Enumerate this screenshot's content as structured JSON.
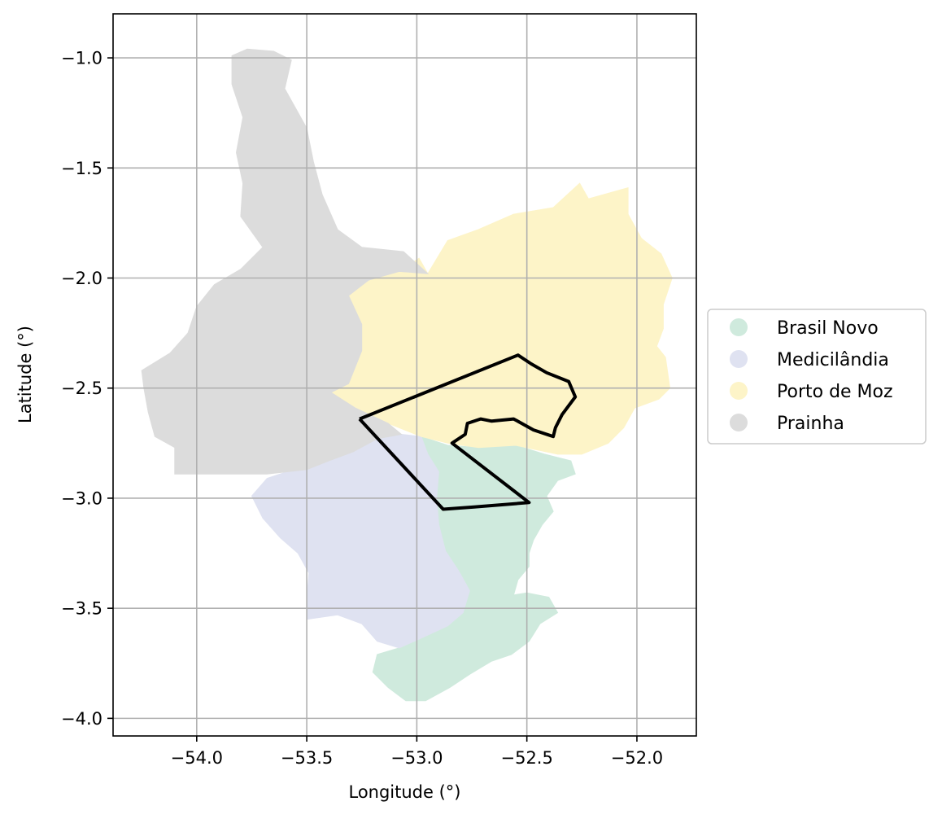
{
  "chart_data": {
    "type": "map",
    "xlabel": "Longitude (°)",
    "ylabel": "Latitude (°)",
    "xlim": [
      -54.38,
      -51.73
    ],
    "ylim": [
      -4.08,
      -0.8
    ],
    "xticks": [
      -54.0,
      -53.5,
      -53.0,
      -52.5,
      -52.0
    ],
    "xtick_labels": [
      "−54.0",
      "−53.5",
      "−53.0",
      "−52.5",
      "−52.0"
    ],
    "yticks": [
      -1.0,
      -1.5,
      -2.0,
      -2.5,
      -3.0,
      -3.5,
      -4.0
    ],
    "ytick_labels": [
      "−1.0",
      "−1.5",
      "−2.0",
      "−2.5",
      "−3.0",
      "−3.5",
      "−4.0"
    ],
    "grid": true,
    "legend_position": "right",
    "regions": [
      {
        "name": "Brasil Novo",
        "color": "#cfeadd",
        "outline": [
          [
            -52.98,
            -2.72
          ],
          [
            -52.86,
            -2.76
          ],
          [
            -52.72,
            -2.77
          ],
          [
            -52.55,
            -2.76
          ],
          [
            -52.42,
            -2.8
          ],
          [
            -52.3,
            -2.83
          ],
          [
            -52.28,
            -2.89
          ],
          [
            -52.36,
            -2.92
          ],
          [
            -52.41,
            -2.99
          ],
          [
            -52.38,
            -3.06
          ],
          [
            -52.43,
            -3.12
          ],
          [
            -52.47,
            -3.19
          ],
          [
            -52.49,
            -3.25
          ],
          [
            -52.49,
            -3.31
          ],
          [
            -52.54,
            -3.37
          ],
          [
            -52.56,
            -3.44
          ],
          [
            -52.5,
            -3.43
          ],
          [
            -52.4,
            -3.45
          ],
          [
            -52.36,
            -3.52
          ],
          [
            -52.44,
            -3.57
          ],
          [
            -52.49,
            -3.65
          ],
          [
            -52.57,
            -3.71
          ],
          [
            -52.66,
            -3.74
          ],
          [
            -52.76,
            -3.8
          ],
          [
            -52.85,
            -3.86
          ],
          [
            -52.96,
            -3.92
          ],
          [
            -53.05,
            -3.92
          ],
          [
            -53.13,
            -3.86
          ],
          [
            -53.2,
            -3.79
          ],
          [
            -53.18,
            -3.71
          ],
          [
            -53.08,
            -3.68
          ],
          [
            -52.99,
            -3.64
          ],
          [
            -52.86,
            -3.58
          ],
          [
            -52.79,
            -3.52
          ],
          [
            -52.76,
            -3.42
          ],
          [
            -52.81,
            -3.33
          ],
          [
            -52.87,
            -3.24
          ],
          [
            -52.9,
            -3.12
          ],
          [
            -52.91,
            -3.0
          ],
          [
            -52.9,
            -2.88
          ],
          [
            -52.95,
            -2.8
          ]
        ]
      },
      {
        "name": "Medicilândia",
        "color": "#dfe2f1",
        "outline": [
          [
            -53.59,
            -2.88
          ],
          [
            -53.5,
            -2.87
          ],
          [
            -53.4,
            -2.83
          ],
          [
            -53.29,
            -2.79
          ],
          [
            -53.18,
            -2.73
          ],
          [
            -53.07,
            -2.71
          ],
          [
            -52.98,
            -2.72
          ],
          [
            -52.95,
            -2.8
          ],
          [
            -52.9,
            -2.88
          ],
          [
            -52.91,
            -3.0
          ],
          [
            -52.9,
            -3.12
          ],
          [
            -52.87,
            -3.24
          ],
          [
            -52.81,
            -3.33
          ],
          [
            -52.76,
            -3.42
          ],
          [
            -52.79,
            -3.52
          ],
          [
            -52.86,
            -3.58
          ],
          [
            -52.99,
            -3.64
          ],
          [
            -53.08,
            -3.68
          ],
          [
            -53.18,
            -3.65
          ],
          [
            -53.25,
            -3.57
          ],
          [
            -53.36,
            -3.53
          ],
          [
            -53.5,
            -3.55
          ],
          [
            -53.5,
            -3.46
          ],
          [
            -53.49,
            -3.34
          ],
          [
            -53.54,
            -3.25
          ],
          [
            -53.62,
            -3.18
          ],
          [
            -53.7,
            -3.09
          ],
          [
            -53.75,
            -2.99
          ],
          [
            -53.68,
            -2.91
          ]
        ]
      },
      {
        "name": "Porto de Moz",
        "color": "#fdf4c8",
        "outline": [
          [
            -52.95,
            -1.98
          ],
          [
            -52.86,
            -1.83
          ],
          [
            -52.72,
            -1.78
          ],
          [
            -52.56,
            -1.71
          ],
          [
            -52.38,
            -1.68
          ],
          [
            -52.26,
            -1.57
          ],
          [
            -52.22,
            -1.64
          ],
          [
            -52.04,
            -1.59
          ],
          [
            -52.04,
            -1.71
          ],
          [
            -51.98,
            -1.82
          ],
          [
            -51.89,
            -1.89
          ],
          [
            -51.84,
            -2.0
          ],
          [
            -51.88,
            -2.12
          ],
          [
            -51.88,
            -2.23
          ],
          [
            -51.91,
            -2.31
          ],
          [
            -51.87,
            -2.36
          ],
          [
            -51.85,
            -2.5
          ],
          [
            -51.9,
            -2.55
          ],
          [
            -52.01,
            -2.59
          ],
          [
            -52.06,
            -2.68
          ],
          [
            -52.13,
            -2.75
          ],
          [
            -52.25,
            -2.8
          ],
          [
            -52.36,
            -2.8
          ],
          [
            -52.55,
            -2.76
          ],
          [
            -52.72,
            -2.77
          ],
          [
            -52.86,
            -2.75
          ],
          [
            -52.98,
            -2.72
          ],
          [
            -53.13,
            -2.66
          ],
          [
            -53.28,
            -2.59
          ],
          [
            -53.39,
            -2.52
          ],
          [
            -53.31,
            -2.48
          ],
          [
            -53.25,
            -2.33
          ],
          [
            -53.25,
            -2.21
          ],
          [
            -53.31,
            -2.08
          ],
          [
            -53.22,
            -2.01
          ],
          [
            -53.08,
            -1.97
          ],
          [
            -52.99,
            -1.91
          ]
        ]
      },
      {
        "name": "Prainha",
        "color": "#dcdcdc",
        "outline": [
          [
            -53.84,
            -0.99
          ],
          [
            -53.77,
            -0.96
          ],
          [
            -53.65,
            -0.97
          ],
          [
            -53.57,
            -1.01
          ],
          [
            -53.6,
            -1.14
          ],
          [
            -53.55,
            -1.23
          ],
          [
            -53.5,
            -1.32
          ],
          [
            -53.47,
            -1.47
          ],
          [
            -53.43,
            -1.62
          ],
          [
            -53.36,
            -1.78
          ],
          [
            -53.25,
            -1.86
          ],
          [
            -53.06,
            -1.88
          ],
          [
            -52.95,
            -1.98
          ],
          [
            -53.08,
            -1.97
          ],
          [
            -53.22,
            -2.01
          ],
          [
            -53.31,
            -2.08
          ],
          [
            -53.25,
            -2.21
          ],
          [
            -53.25,
            -2.33
          ],
          [
            -53.31,
            -2.48
          ],
          [
            -53.39,
            -2.52
          ],
          [
            -53.28,
            -2.59
          ],
          [
            -53.13,
            -2.66
          ],
          [
            -53.07,
            -2.71
          ],
          [
            -53.18,
            -2.73
          ],
          [
            -53.29,
            -2.79
          ],
          [
            -53.4,
            -2.83
          ],
          [
            -53.5,
            -2.87
          ],
          [
            -53.59,
            -2.88
          ],
          [
            -53.68,
            -2.89
          ],
          [
            -53.75,
            -2.89
          ],
          [
            -54.1,
            -2.89
          ],
          [
            -54.1,
            -2.77
          ],
          [
            -54.19,
            -2.72
          ],
          [
            -54.22,
            -2.61
          ],
          [
            -54.24,
            -2.5
          ],
          [
            -54.25,
            -2.42
          ],
          [
            -54.12,
            -2.34
          ],
          [
            -54.04,
            -2.25
          ],
          [
            -54.0,
            -2.13
          ],
          [
            -53.92,
            -2.03
          ],
          [
            -53.8,
            -1.96
          ],
          [
            -53.7,
            -1.86
          ],
          [
            -53.8,
            -1.72
          ],
          [
            -53.79,
            -1.57
          ],
          [
            -53.82,
            -1.43
          ],
          [
            -53.79,
            -1.27
          ],
          [
            -53.84,
            -1.12
          ]
        ]
      }
    ],
    "study_area_outline": [
      [
        -53.26,
        -2.64
      ],
      [
        -52.54,
        -2.35
      ],
      [
        -52.48,
        -2.39
      ],
      [
        -52.41,
        -2.43
      ],
      [
        -52.31,
        -2.47
      ],
      [
        -52.28,
        -2.54
      ],
      [
        -52.34,
        -2.62
      ],
      [
        -52.37,
        -2.68
      ],
      [
        -52.38,
        -2.72
      ],
      [
        -52.47,
        -2.69
      ],
      [
        -52.56,
        -2.64
      ],
      [
        -52.66,
        -2.65
      ],
      [
        -52.71,
        -2.64
      ],
      [
        -52.77,
        -2.66
      ],
      [
        -52.78,
        -2.71
      ],
      [
        -52.84,
        -2.75
      ],
      [
        -52.49,
        -3.02
      ],
      [
        -52.74,
        -3.04
      ],
      [
        -52.88,
        -3.05
      ],
      [
        -53.26,
        -2.64
      ]
    ]
  }
}
